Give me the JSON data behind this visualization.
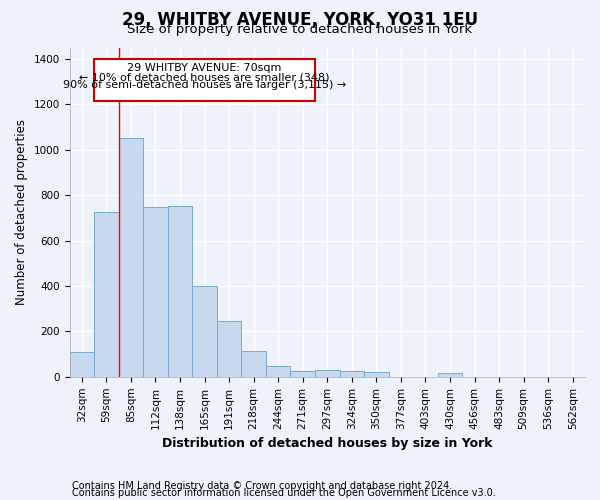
{
  "title_line1": "29, WHITBY AVENUE, YORK, YO31 1EU",
  "title_line2": "Size of property relative to detached houses in York",
  "xlabel": "Distribution of detached houses by size in York",
  "ylabel": "Number of detached properties",
  "categories": [
    "32sqm",
    "59sqm",
    "85sqm",
    "112sqm",
    "138sqm",
    "165sqm",
    "191sqm",
    "218sqm",
    "244sqm",
    "271sqm",
    "297sqm",
    "324sqm",
    "350sqm",
    "377sqm",
    "403sqm",
    "430sqm",
    "456sqm",
    "483sqm",
    "509sqm",
    "536sqm",
    "562sqm"
  ],
  "values": [
    108,
    725,
    1050,
    748,
    750,
    400,
    245,
    115,
    48,
    25,
    30,
    25,
    20,
    0,
    0,
    15,
    0,
    0,
    0,
    0,
    0
  ],
  "bar_color": "#c8d8ee",
  "bar_edge_color": "#7aabcc",
  "red_line_x": 1.5,
  "annotation_text_line1": "29 WHITBY AVENUE: 70sqm",
  "annotation_text_line2": "← 10% of detached houses are smaller (348)",
  "annotation_text_line3": "90% of semi-detached houses are larger (3,115) →",
  "annotation_box_color": "#ffffff",
  "annotation_box_edge": "#cc0000",
  "ylim": [
    0,
    1450
  ],
  "yticks": [
    0,
    200,
    400,
    600,
    800,
    1000,
    1200,
    1400
  ],
  "footer_line1": "Contains HM Land Registry data © Crown copyright and database right 2024.",
  "footer_line2": "Contains public sector information licensed under the Open Government Licence v3.0.",
  "background_color": "#eef2fb",
  "grid_color": "#ffffff",
  "title1_fontsize": 12,
  "title2_fontsize": 9.5,
  "xlabel_fontsize": 9,
  "ylabel_fontsize": 8.5,
  "tick_fontsize": 7.5,
  "footer_fontsize": 7,
  "annot_fontsize": 8
}
